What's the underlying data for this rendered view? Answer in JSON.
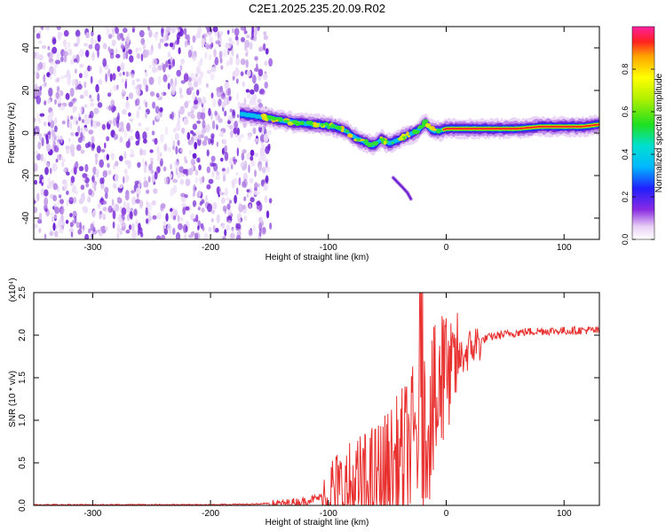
{
  "title": "C2E1.2025.235.20.09.R02",
  "chart_data": [
    {
      "type": "heatmap",
      "name": "spectrogram",
      "xlabel": "Height of straight line (km)",
      "ylabel": "Frequency (Hz)",
      "xlim": [
        -350,
        130
      ],
      "ylim": [
        -50,
        50
      ],
      "xticks": [
        -300,
        -200,
        -100,
        0,
        100
      ],
      "yticks": [
        -40,
        -20,
        0,
        20,
        40
      ],
      "noise_region_x": [
        -350,
        -155
      ],
      "ridge": {
        "x": [
          -175,
          -150,
          -130,
          -110,
          -95,
          -85,
          -78,
          -70,
          -62,
          -55,
          -48,
          -40,
          -33,
          -28,
          -22,
          -18,
          -14,
          -10,
          -5,
          0,
          20,
          40,
          60,
          80,
          100,
          115,
          130
        ],
        "y": [
          9,
          7,
          5,
          4,
          3,
          1,
          -2,
          -4,
          -6,
          -3,
          -5,
          -3,
          -1,
          0,
          2,
          5,
          2,
          1,
          1,
          2,
          2,
          2,
          2,
          3,
          3,
          3,
          4
        ]
      },
      "branch": {
        "x": [
          -45,
          -38,
          -33,
          -30
        ],
        "y": [
          -21,
          -25,
          -28,
          -31
        ]
      },
      "colorbar": {
        "label": "Normalized spectral amplitude",
        "range": [
          0,
          1
        ],
        "ticks": [
          "0.0",
          "0.2",
          "0.4",
          "0.6",
          "0.8"
        ]
      }
    },
    {
      "type": "line",
      "name": "snr",
      "xlabel": "Height of straight line (km)",
      "ylabel": "SNR (10 * v/v)",
      "multiplier": "(x10⁴)",
      "xlim": [
        -350,
        130
      ],
      "ylim": [
        0,
        2.5
      ],
      "xticks": [
        -300,
        -200,
        -100,
        0,
        100
      ],
      "yticks": [
        "0.0",
        "0.5",
        "1.0",
        "1.5",
        "2.0",
        "2.5"
      ],
      "color": "#e8302f",
      "series": [
        {
          "name": "SNR",
          "x": [
            -350,
            -200,
            -160,
            -140,
            -120,
            -105,
            -95,
            -80,
            -65,
            -50,
            -40,
            -30,
            -20,
            -12,
            -5,
            0,
            10,
            25,
            35,
            45,
            60,
            80,
            100,
            120,
            130
          ],
          "y": [
            0.0,
            0.0,
            0.01,
            0.02,
            0.05,
            0.1,
            0.14,
            0.18,
            0.24,
            0.35,
            0.5,
            0.7,
            0.95,
            1.05,
            1.2,
            1.45,
            1.7,
            1.9,
            1.97,
            2.0,
            2.03,
            2.05,
            2.05,
            2.06,
            2.05
          ]
        }
      ]
    }
  ]
}
